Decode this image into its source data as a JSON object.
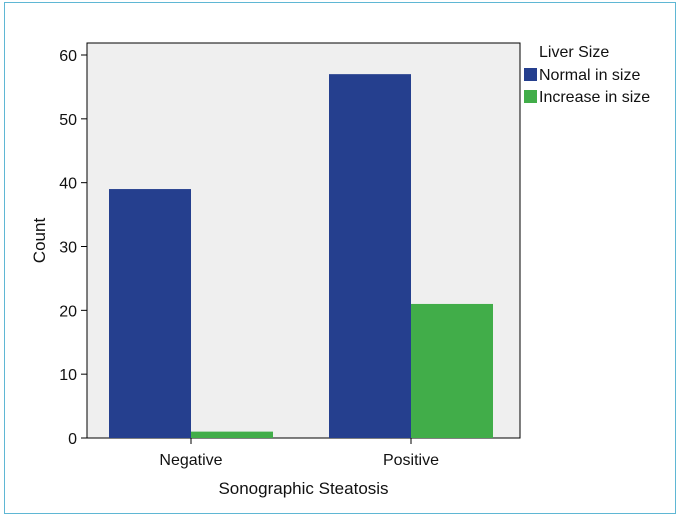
{
  "chart_data": {
    "type": "bar",
    "categories": [
      "Negative",
      "Positive"
    ],
    "series": [
      {
        "name": "Normal in size",
        "values": [
          39,
          57
        ],
        "color": "#253f8e"
      },
      {
        "name": "Increase in size",
        "values": [
          1,
          21
        ],
        "color": "#41ad49"
      }
    ],
    "xlabel": "Sonographic Steatosis",
    "ylabel": "Count",
    "ylim": [
      0,
      60
    ],
    "yticks": [
      0,
      10,
      20,
      30,
      40,
      50,
      60
    ],
    "legend": {
      "title": "Liver Size",
      "position": "right-top"
    },
    "plot_background": "#efefef",
    "grid": false
  }
}
